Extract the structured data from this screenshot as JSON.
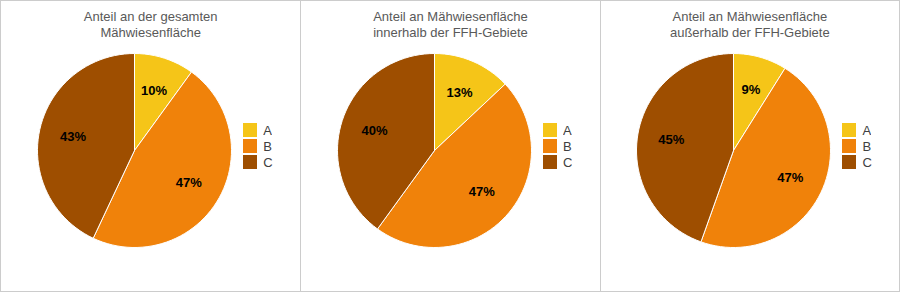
{
  "chart_data": [
    {
      "type": "pie",
      "title": "Anteil an der gesamten\nMähwiesenfläche",
      "categories": [
        "A",
        "B",
        "C"
      ],
      "values": [
        10,
        47,
        43
      ],
      "value_labels": [
        "10%",
        "47%",
        "43%"
      ],
      "data_labels": true,
      "colors": [
        "#F5C518",
        "#F0820A",
        "#9E4E00"
      ],
      "legend": "right"
    },
    {
      "type": "pie",
      "title": "Anteil an Mähwiesenfläche\ninnerhalb der FFH-Gebiete",
      "categories": [
        "A",
        "B",
        "C"
      ],
      "values": [
        13,
        47,
        40
      ],
      "value_labels": [
        "13%",
        "47%",
        "40%"
      ],
      "data_labels": true,
      "colors": [
        "#F5C518",
        "#F0820A",
        "#9E4E00"
      ],
      "legend": "right"
    },
    {
      "type": "pie",
      "title": "Anteil an Mähwiesenfläche\naußerhalb der FFH-Gebiete",
      "categories": [
        "A",
        "B",
        "C"
      ],
      "values": [
        9,
        47,
        45
      ],
      "value_labels": [
        "9%",
        "47%",
        "45%"
      ],
      "data_labels": true,
      "colors": [
        "#F5C518",
        "#F0820A",
        "#9E4E00"
      ],
      "legend": "right"
    }
  ]
}
